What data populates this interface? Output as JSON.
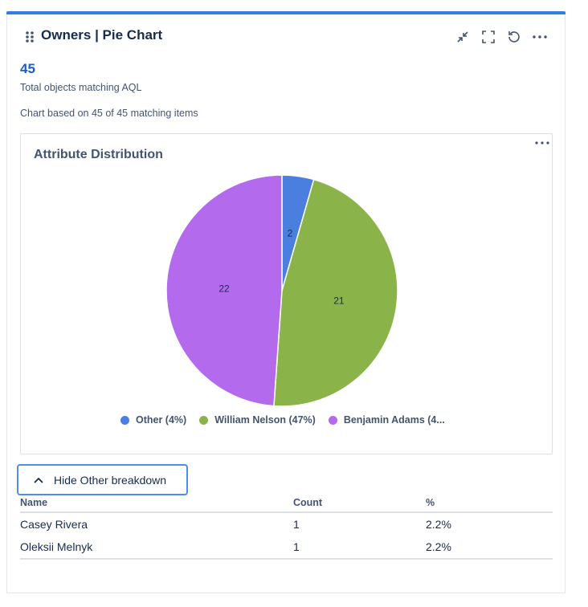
{
  "header": {
    "title": "Owners | Pie Chart",
    "icons": [
      "drag-handle-icon",
      "collapse-icon",
      "fullscreen-icon",
      "refresh-icon",
      "more-icon"
    ]
  },
  "summary": {
    "total": "45",
    "total_label": "Total objects matching AQL",
    "basis": "Chart based on 45 of 45 matching items"
  },
  "colors": {
    "accent": "#2e7ee3",
    "total": "#1f5bc7"
  },
  "chart_data": {
    "type": "pie",
    "title": "Attribute Distribution",
    "slices": [
      {
        "label": "Other",
        "value": 2,
        "color": "#4a7fe0",
        "legend": "Other (4%)"
      },
      {
        "label": "William Nelson",
        "value": 21,
        "color": "#8ab34a",
        "legend": "William Nelson (47%)"
      },
      {
        "label": "Benjamin Adams",
        "value": 22,
        "color": "#b36aed",
        "legend": "Benjamin Adams (4..."
      }
    ],
    "legend_position": "bottom"
  },
  "breakdown": {
    "toggle_label": "Hide Other breakdown",
    "columns": [
      "Name",
      "Count",
      "%"
    ],
    "rows": [
      [
        "Casey Rivera",
        "1",
        "2.2%"
      ],
      [
        "Oleksii Melnyk",
        "1",
        "2.2%"
      ]
    ]
  }
}
